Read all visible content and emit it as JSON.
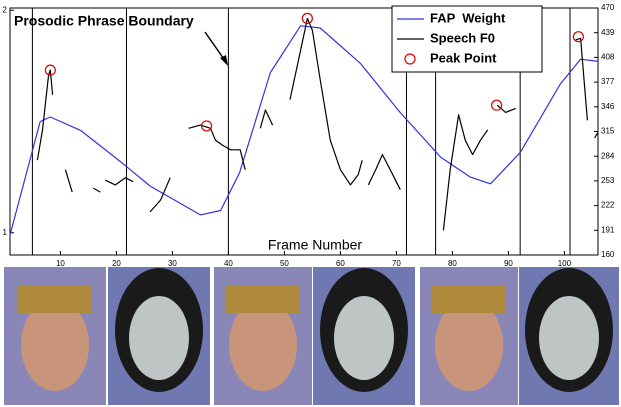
{
  "chart_data": {
    "type": "line",
    "annotation": "Prosodic Phrase Boundary",
    "xlabel": "Frame Number",
    "xlim": [
      1,
      106
    ],
    "xticks": [
      10,
      20,
      30,
      40,
      50,
      60,
      70,
      80,
      90,
      100
    ],
    "ylim": [
      0.9,
      2.01
    ],
    "yticks": [
      1,
      2
    ],
    "y2lim": [
      160,
      470
    ],
    "y2ticks": [
      160,
      191,
      222,
      253,
      284,
      315,
      346,
      377,
      408,
      439,
      470
    ],
    "legend": "upper-right",
    "boundaries": [
      5,
      21.8,
      40,
      71.8,
      77,
      92.1,
      101
    ],
    "boundary_color": "#000000",
    "series": [
      {
        "name": "FAP  Weight",
        "color": "#3333dd",
        "axis": "y",
        "mode": "line",
        "x": [
          1,
          6.4,
          8.2,
          13.6,
          20.7,
          26,
          35,
          38.6,
          42,
          47.5,
          52.9,
          56.4,
          63.6,
          70.7,
          77.9,
          83.2,
          86.8,
          92.1,
          99.3,
          102.9,
          106
        ],
        "values": [
          0.99,
          1.5,
          1.52,
          1.46,
          1.32,
          1.21,
          1.08,
          1.1,
          1.27,
          1.72,
          1.93,
          1.92,
          1.76,
          1.54,
          1.34,
          1.25,
          1.22,
          1.36,
          1.67,
          1.78,
          1.77
        ]
      },
      {
        "name": "Speech F0",
        "color": "#000000",
        "axis": "y2",
        "mode": "line",
        "x": [
          5.9,
          6.8,
          7.9,
          8.2,
          8.6,
          null,
          10.9,
          12.1,
          null,
          15.9,
          17.1,
          null,
          18,
          19.8,
          21.6,
          23,
          null,
          26,
          27.9,
          29.6,
          null,
          32.9,
          35,
          36.8,
          37.7,
          38.9,
          40.4,
          42.1,
          43,
          null,
          45.7,
          46.6,
          47.9,
          null,
          51,
          52.9,
          54.1,
          55,
          56.4,
          58.2,
          60,
          61.8,
          63.2,
          63.9,
          null,
          65,
          66.3,
          67.5,
          68.9,
          70.7,
          null,
          78.4,
          79.6,
          81.1,
          82.3,
          83.6,
          85,
          86.3,
          null,
          88,
          89.5,
          91.3,
          null,
          102,
          102.9,
          104.1,
          null,
          105.4,
          106
        ],
        "values": [
          279,
          317,
          386,
          392,
          361,
          null,
          267,
          239,
          null,
          244,
          239,
          null,
          254,
          248,
          257,
          252,
          null,
          214,
          229,
          257,
          null,
          319,
          323,
          319,
          304,
          298,
          292,
          292,
          267,
          null,
          319,
          342,
          323,
          null,
          355,
          417,
          457,
          442,
          380,
          304,
          267,
          248,
          261,
          279,
          null,
          248,
          267,
          286,
          267,
          242,
          null,
          191,
          267,
          336,
          304,
          286,
          304,
          317,
          null,
          348,
          339,
          344,
          null,
          430,
          432,
          329,
          null,
          307,
          314
        ]
      },
      {
        "name": "Peak Point",
        "color": "#dd0000",
        "axis": "y2",
        "mode": "markers",
        "x": [
          8.2,
          36.1,
          54.1,
          87.9,
          102.5
        ],
        "values": [
          392,
          322,
          457,
          348,
          434
        ]
      }
    ]
  }
}
